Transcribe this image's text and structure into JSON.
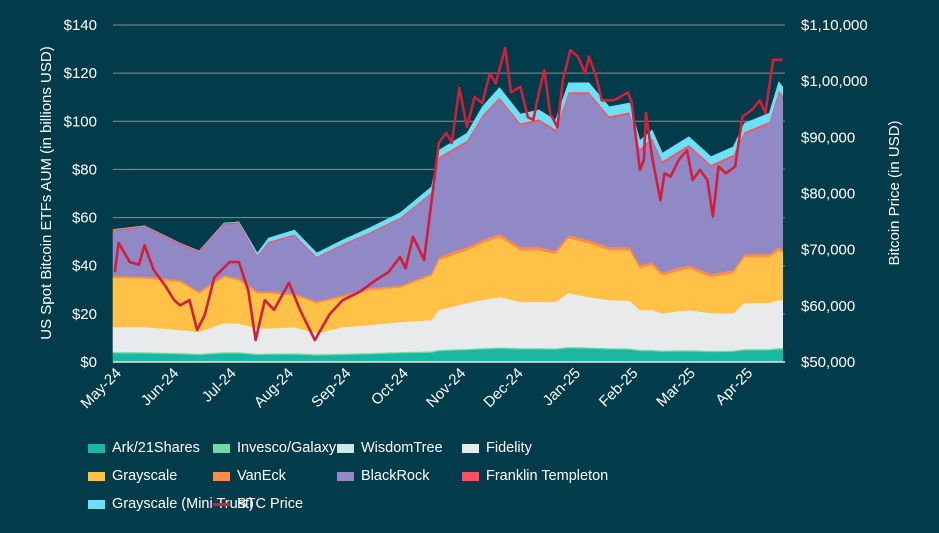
{
  "chart_data": {
    "type": "area",
    "stacked": true,
    "ylabel": "US Spot Bitcoin ETFs AUM (in billions USD)",
    "y2label": "Bitcoin Price (in USD)",
    "ylim": [
      0,
      140
    ],
    "y2lim": [
      50000,
      110000
    ],
    "yticks": [
      "$0",
      "$20",
      "$40",
      "$60",
      "$80",
      "$100",
      "$120",
      "$140"
    ],
    "y2ticks": [
      "$50,000",
      "$60,000",
      "$70,000",
      "$80,000",
      "$90,000",
      "$1,00,000",
      "$1,10,000"
    ],
    "xticks": [
      "May-24",
      "Jun-24",
      "Jul-24",
      "Aug-24",
      "Sep-24",
      "Oct-24",
      "Nov-24",
      "Dec-24",
      "Jan-25",
      "Feb-25",
      "Mar-25",
      "Apr-25"
    ],
    "grid": true,
    "legend_position": "bottom",
    "dates": [
      "2024-05-01",
      "2024-05-18",
      "2024-06-06",
      "2024-06-16",
      "2024-06-29",
      "2024-07-07",
      "2024-07-17",
      "2024-07-23",
      "2024-08-06",
      "2024-08-18",
      "2024-09-01",
      "2024-09-15",
      "2024-10-01",
      "2024-10-18",
      "2024-10-22",
      "2024-11-06",
      "2024-11-14",
      "2024-11-23",
      "2024-12-04",
      "2024-12-14",
      "2024-12-23",
      "2024-12-30",
      "2025-01-10",
      "2025-01-21",
      "2025-02-01",
      "2025-02-06",
      "2025-02-12",
      "2025-02-17",
      "2025-03-02",
      "2025-03-14",
      "2025-03-26",
      "2025-04-01",
      "2025-04-14",
      "2025-04-19",
      "2025-04-21"
    ],
    "series": [
      {
        "name": "Ark/21Shares",
        "color": "#1ab8a0",
        "values": [
          3.7,
          3.6,
          3.3,
          3.0,
          3.6,
          3.6,
          3.0,
          3.1,
          3.2,
          2.8,
          3.0,
          3.3,
          3.7,
          4.0,
          4.6,
          5.0,
          5.3,
          5.6,
          5.3,
          5.3,
          5.2,
          5.8,
          5.6,
          5.3,
          5.2,
          4.6,
          4.6,
          4.3,
          4.5,
          4.2,
          4.3,
          4.9,
          4.9,
          5.3,
          5.3
        ]
      },
      {
        "name": "Invesco/Galaxy",
        "color": "#6fd8a8",
        "values": [
          0.5,
          0.5,
          0.5,
          0.5,
          0.5,
          0.5,
          0.5,
          0.5,
          0.5,
          0.5,
          0.5,
          0.5,
          0.5,
          0.5,
          0.5,
          0.5,
          0.5,
          0.5,
          0.5,
          0.5,
          0.5,
          0.5,
          0.5,
          0.5,
          0.5,
          0.5,
          0.5,
          0.5,
          0.5,
          0.5,
          0.5,
          0.5,
          0.5,
          0.5,
          0.5
        ]
      },
      {
        "name": "WisdomTree",
        "color": "#cce8e4",
        "values": [
          0.2,
          0.2,
          0.2,
          0.2,
          0.2,
          0.2,
          0.2,
          0.2,
          0.2,
          0.2,
          0.2,
          0.2,
          0.2,
          0.2,
          0.2,
          0.2,
          0.2,
          0.2,
          0.2,
          0.2,
          0.2,
          0.2,
          0.2,
          0.2,
          0.2,
          0.2,
          0.2,
          0.2,
          0.2,
          0.2,
          0.2,
          0.2,
          0.2,
          0.2,
          0.2
        ]
      },
      {
        "name": "Fidelity",
        "color": "#e8eaec",
        "values": [
          10.2,
          10.3,
          9.3,
          8.8,
          11.9,
          11.7,
          10.3,
          10.2,
          10.6,
          8.5,
          10.8,
          11.4,
          12.2,
          12.8,
          16.3,
          18.8,
          19.8,
          20.7,
          19.0,
          19.0,
          19.1,
          22.2,
          20.7,
          19.8,
          19.6,
          16.3,
          16.3,
          15.3,
          16.4,
          15.4,
          15.3,
          18.9,
          18.9,
          19.8,
          19.8
        ]
      },
      {
        "name": "Grayscale",
        "color": "#ffc247",
        "values": [
          20.4,
          20.2,
          20.0,
          16.1,
          19.1,
          18.0,
          14.6,
          14.6,
          13.3,
          12.5,
          12.5,
          14.6,
          14.4,
          18.5,
          20.8,
          22.0,
          23.6,
          25.0,
          21.5,
          21.5,
          20.0,
          22.8,
          22.4,
          20.7,
          21.0,
          17.4,
          18.7,
          15.7,
          17.4,
          15.0,
          16.7,
          19.1,
          19.1,
          20.7,
          19.7
        ]
      },
      {
        "name": "VanEck",
        "color": "#ff8c4a",
        "values": [
          0.8,
          0.8,
          0.8,
          0.8,
          0.8,
          0.8,
          0.8,
          0.8,
          0.8,
          0.8,
          0.8,
          0.8,
          0.8,
          0.8,
          1.3,
          1.3,
          1.3,
          1.3,
          1.3,
          1.3,
          1.3,
          1.3,
          1.3,
          1.3,
          1.3,
          1.3,
          1.3,
          1.3,
          1.3,
          1.3,
          1.3,
          1.3,
          1.3,
          1.3,
          1.3
        ]
      },
      {
        "name": "BlackRock",
        "color": "#9189c5",
        "values": [
          18.7,
          20.5,
          14.8,
          16.2,
          21.1,
          22.9,
          14.5,
          20.1,
          24.0,
          18.0,
          20.8,
          22.6,
          27.7,
          33.2,
          40.7,
          43.4,
          51.0,
          55.9,
          50.6,
          52.3,
          49.6,
          58.6,
          60.7,
          53.6,
          55.2,
          47.6,
          50.7,
          45.4,
          49.2,
          44.6,
          47.0,
          49.9,
          54.1,
          64.2,
          63.1
        ]
      },
      {
        "name": "Franklin Templeton",
        "color": "#ff4f5e",
        "values": [
          0.5,
          0.5,
          0.5,
          0.5,
          0.5,
          0.5,
          0.5,
          0.5,
          0.5,
          0.5,
          0.5,
          0.5,
          0.5,
          0.5,
          0.8,
          0.8,
          0.8,
          0.8,
          0.8,
          0.8,
          0.8,
          0.8,
          0.8,
          0.8,
          0.8,
          0.8,
          0.8,
          0.8,
          0.8,
          0.8,
          0.8,
          0.8,
          0.8,
          0.8,
          0.8
        ]
      },
      {
        "name": "Grayscale (Mini Trust)",
        "color": "#6ce0f5",
        "values": [
          0,
          0,
          0,
          0,
          0,
          0,
          0.9,
          1.5,
          1.7,
          1.5,
          1.6,
          1.8,
          2.0,
          2.3,
          2.8,
          3.0,
          3.5,
          4.0,
          3.8,
          3.8,
          3.8,
          3.8,
          3.8,
          3.8,
          3.8,
          3.3,
          3.3,
          3.3,
          3.3,
          3.3,
          3.3,
          3.6,
          3.6,
          3.6,
          3.6
        ]
      }
    ],
    "line_series": {
      "name": "BTC Price",
      "color": "#d21e3c",
      "axis": "right",
      "points": [
        [
          "2024-05-02",
          66000
        ],
        [
          "2024-05-04",
          71200
        ],
        [
          "2024-05-10",
          67800
        ],
        [
          "2024-05-15",
          67300
        ],
        [
          "2024-05-18",
          70800
        ],
        [
          "2024-05-23",
          66400
        ],
        [
          "2024-05-29",
          63700
        ],
        [
          "2024-06-03",
          61000
        ],
        [
          "2024-06-06",
          60100
        ],
        [
          "2024-06-11",
          61000
        ],
        [
          "2024-06-15",
          55700
        ],
        [
          "2024-06-19",
          58400
        ],
        [
          "2024-06-24",
          65100
        ],
        [
          "2024-07-02",
          67800
        ],
        [
          "2024-07-07",
          67800
        ],
        [
          "2024-07-12",
          62800
        ],
        [
          "2024-07-16",
          53900
        ],
        [
          "2024-07-21",
          61000
        ],
        [
          "2024-07-26",
          59300
        ],
        [
          "2024-08-03",
          64100
        ],
        [
          "2024-08-09",
          59300
        ],
        [
          "2024-08-17",
          53900
        ],
        [
          "2024-08-25",
          58500
        ],
        [
          "2024-09-01",
          61000
        ],
        [
          "2024-09-10",
          62500
        ],
        [
          "2024-09-18",
          64500
        ],
        [
          "2024-09-25",
          66000
        ],
        [
          "2024-10-01",
          68700
        ],
        [
          "2024-10-04",
          66700
        ],
        [
          "2024-10-08",
          72300
        ],
        [
          "2024-10-14",
          68200
        ],
        [
          "2024-10-17",
          75900
        ],
        [
          "2024-10-22",
          89000
        ],
        [
          "2024-10-26",
          90800
        ],
        [
          "2024-10-29",
          89000
        ],
        [
          "2024-11-02",
          98800
        ],
        [
          "2024-11-06",
          91800
        ],
        [
          "2024-11-10",
          97200
        ],
        [
          "2024-11-14",
          96100
        ],
        [
          "2024-11-18",
          101400
        ],
        [
          "2024-11-21",
          99600
        ],
        [
          "2024-11-26",
          105900
        ],
        [
          "2024-11-29",
          98000
        ],
        [
          "2024-12-04",
          99000
        ],
        [
          "2024-12-08",
          93600
        ],
        [
          "2024-12-11",
          93100
        ],
        [
          "2024-12-14",
          98000
        ],
        [
          "2024-12-17",
          102000
        ],
        [
          "2024-12-20",
          94300
        ],
        [
          "2024-12-24",
          91800
        ],
        [
          "2024-12-27",
          100200
        ],
        [
          "2024-12-31",
          105500
        ],
        [
          "2025-01-04",
          104400
        ],
        [
          "2025-01-08",
          101400
        ],
        [
          "2025-01-10",
          104400
        ],
        [
          "2025-01-14",
          100700
        ],
        [
          "2025-01-17",
          96600
        ],
        [
          "2025-01-23",
          96600
        ],
        [
          "2025-01-26",
          97000
        ],
        [
          "2025-01-31",
          98000
        ],
        [
          "2025-02-02",
          96300
        ],
        [
          "2025-02-06",
          84200
        ],
        [
          "2025-02-08",
          86000
        ],
        [
          "2025-02-09",
          94300
        ],
        [
          "2025-02-12",
          86500
        ],
        [
          "2025-02-16",
          78800
        ],
        [
          "2025-02-18",
          83600
        ],
        [
          "2025-02-21",
          83000
        ],
        [
          "2025-02-25",
          86000
        ],
        [
          "2025-03-01",
          87700
        ],
        [
          "2025-03-04",
          82400
        ],
        [
          "2025-03-08",
          84200
        ],
        [
          "2025-03-12",
          82400
        ],
        [
          "2025-03-15",
          75900
        ],
        [
          "2025-03-18",
          84800
        ],
        [
          "2025-03-22",
          83600
        ],
        [
          "2025-03-27",
          84800
        ],
        [
          "2025-03-31",
          93700
        ],
        [
          "2025-04-05",
          94900
        ],
        [
          "2025-04-09",
          96600
        ],
        [
          "2025-04-12",
          94300
        ],
        [
          "2025-04-16",
          103800
        ],
        [
          "2025-04-19",
          103800
        ],
        [
          "2025-04-21",
          103800
        ]
      ]
    }
  },
  "legend": [
    {
      "label": "Ark/21Shares",
      "color": "#1ab8a0",
      "kind": "box"
    },
    {
      "label": "Invesco/Galaxy",
      "color": "#6fd8a8",
      "kind": "box"
    },
    {
      "label": "WisdomTree",
      "color": "#cce8e4",
      "kind": "box"
    },
    {
      "label": "Fidelity",
      "color": "#e8eaec",
      "kind": "box"
    },
    {
      "label": "Grayscale",
      "color": "#ffc247",
      "kind": "box"
    },
    {
      "label": "VanEck",
      "color": "#ff8c4a",
      "kind": "box"
    },
    {
      "label": "BlackRock",
      "color": "#9189c5",
      "kind": "box"
    },
    {
      "label": "Franklin Templeton",
      "color": "#ff4f5e",
      "kind": "box"
    },
    {
      "label": "Grayscale (Mini Trust)",
      "color": "#6ce0f5",
      "kind": "box"
    },
    {
      "label": "BTC Price",
      "color": "#d21e3c",
      "kind": "line"
    }
  ]
}
